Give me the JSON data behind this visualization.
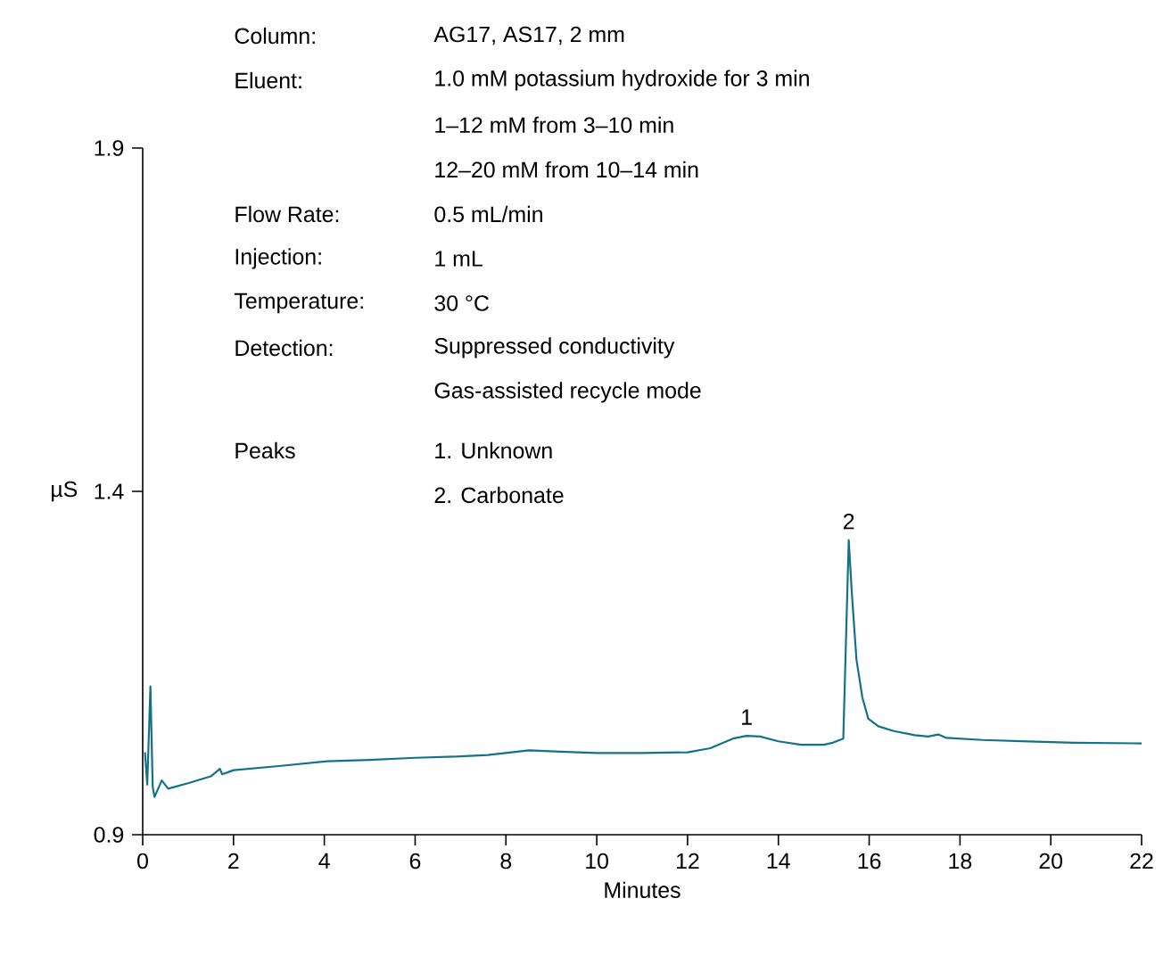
{
  "chart_data": {
    "type": "line",
    "xlabel": "Minutes",
    "ylabel": "µS",
    "xlim": [
      0,
      22
    ],
    "ylim": [
      0.9,
      1.9
    ],
    "xticks": [
      0,
      2,
      4,
      6,
      8,
      10,
      12,
      14,
      16,
      18,
      20,
      22
    ],
    "yticks": [
      0.9,
      1.4,
      1.9
    ],
    "grid": false,
    "marker": "none",
    "line_style": "solid",
    "series": [
      {
        "color": "#13718a",
        "x": [
          0.05,
          0.1,
          0.17,
          0.22,
          0.26,
          0.42,
          0.56,
          1.0,
          1.5,
          1.7,
          1.75,
          2.0,
          3.0,
          4.06,
          5.0,
          6.0,
          7.0,
          7.6,
          8.51,
          9.2,
          10.0,
          11.0,
          12.0,
          12.5,
          13.0,
          13.3,
          13.6,
          14.0,
          14.5,
          15.0,
          15.2,
          15.43,
          15.55,
          15.62,
          15.72,
          15.85,
          15.98,
          16.2,
          16.54,
          17.0,
          17.3,
          17.52,
          17.7,
          18.5,
          19.5,
          20.5,
          22.0
        ],
        "values": [
          1.02,
          0.973,
          1.116,
          0.97,
          0.955,
          0.979,
          0.967,
          0.975,
          0.985,
          0.996,
          0.988,
          0.994,
          1.0,
          1.007,
          1.009,
          1.012,
          1.014,
          1.016,
          1.023,
          1.021,
          1.019,
          1.019,
          1.02,
          1.026,
          1.04,
          1.044,
          1.043,
          1.036,
          1.031,
          1.031,
          1.034,
          1.04,
          1.329,
          1.25,
          1.155,
          1.1,
          1.069,
          1.058,
          1.051,
          1.045,
          1.043,
          1.046,
          1.041,
          1.038,
          1.036,
          1.034,
          1.033
        ]
      }
    ],
    "annotations": [
      "Column:",
      "AG17, AS17, 2 mm",
      "Eluent:",
      "1.0 mM potassium hydroxide for 3 min",
      "1–12 mM from 3–10 min",
      "12–20 mM from 10–14 min",
      "Flow Rate:",
      "0.5 mL/min",
      "Injection:",
      "1 mL",
      "Temperature:",
      "30 °C",
      "Detection:",
      "Suppressed conductivity",
      "Gas-assisted recycle mode",
      "Peaks",
      "1. Unknown",
      "2. Carbonate",
      {
        "text": "1",
        "x": 13.3,
        "y": 1.044
      },
      {
        "text": "2",
        "x": 15.55,
        "y": 1.329
      }
    ]
  }
}
